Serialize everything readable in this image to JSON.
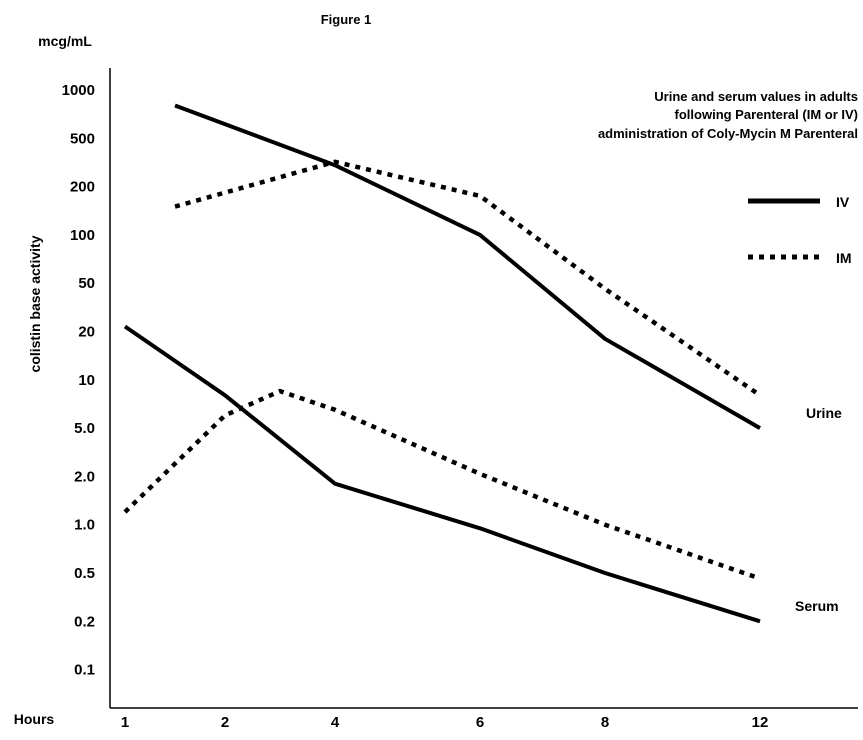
{
  "chart_data": {
    "type": "line",
    "title": "Figure 1",
    "y_unit": "mcg/mL",
    "ylabel": "colistin base activity",
    "xlabel": "Hours",
    "x_ticks": [
      "1",
      "2",
      "4",
      "6",
      "8",
      "12"
    ],
    "y_ticks": [
      "1000",
      "500",
      "200",
      "100",
      "50",
      "20",
      "10",
      "5.0",
      "2.0",
      "1.0",
      "0.5",
      "0.2",
      "0.1"
    ],
    "y_scale": "log",
    "annotation": [
      "Urine and serum values in adults",
      "following Parenteral (IM or IV)",
      "administration of Coly-Mycin M Parenteral"
    ],
    "legend": [
      {
        "label": "IV",
        "style": "solid"
      },
      {
        "label": "IM",
        "style": "dotted"
      }
    ],
    "labels": {
      "urine": "Urine",
      "serum": "Serum"
    },
    "series": [
      {
        "group": "urine",
        "route": "IV",
        "style": "solid",
        "points": [
          [
            1.5,
            800
          ],
          [
            4,
            300
          ],
          [
            6,
            100
          ],
          [
            8,
            18
          ],
          [
            12,
            5
          ]
        ]
      },
      {
        "group": "urine",
        "route": "IM",
        "style": "dotted",
        "points": [
          [
            1.5,
            150
          ],
          [
            4,
            320
          ],
          [
            6,
            175
          ],
          [
            8,
            45
          ],
          [
            12,
            8
          ]
        ]
      },
      {
        "group": "serum",
        "route": "IV",
        "style": "solid",
        "points": [
          [
            1,
            22
          ],
          [
            2,
            8
          ],
          [
            4,
            1.8
          ],
          [
            6,
            0.95
          ],
          [
            8,
            0.5
          ],
          [
            12,
            0.2
          ]
        ]
      },
      {
        "group": "serum",
        "route": "IM",
        "style": "dotted",
        "points": [
          [
            1,
            1.2
          ],
          [
            2,
            6
          ],
          [
            3,
            8.5
          ],
          [
            4,
            6.5
          ],
          [
            6,
            2.1
          ],
          [
            8,
            1.0
          ],
          [
            12,
            0.45
          ]
        ]
      }
    ]
  }
}
